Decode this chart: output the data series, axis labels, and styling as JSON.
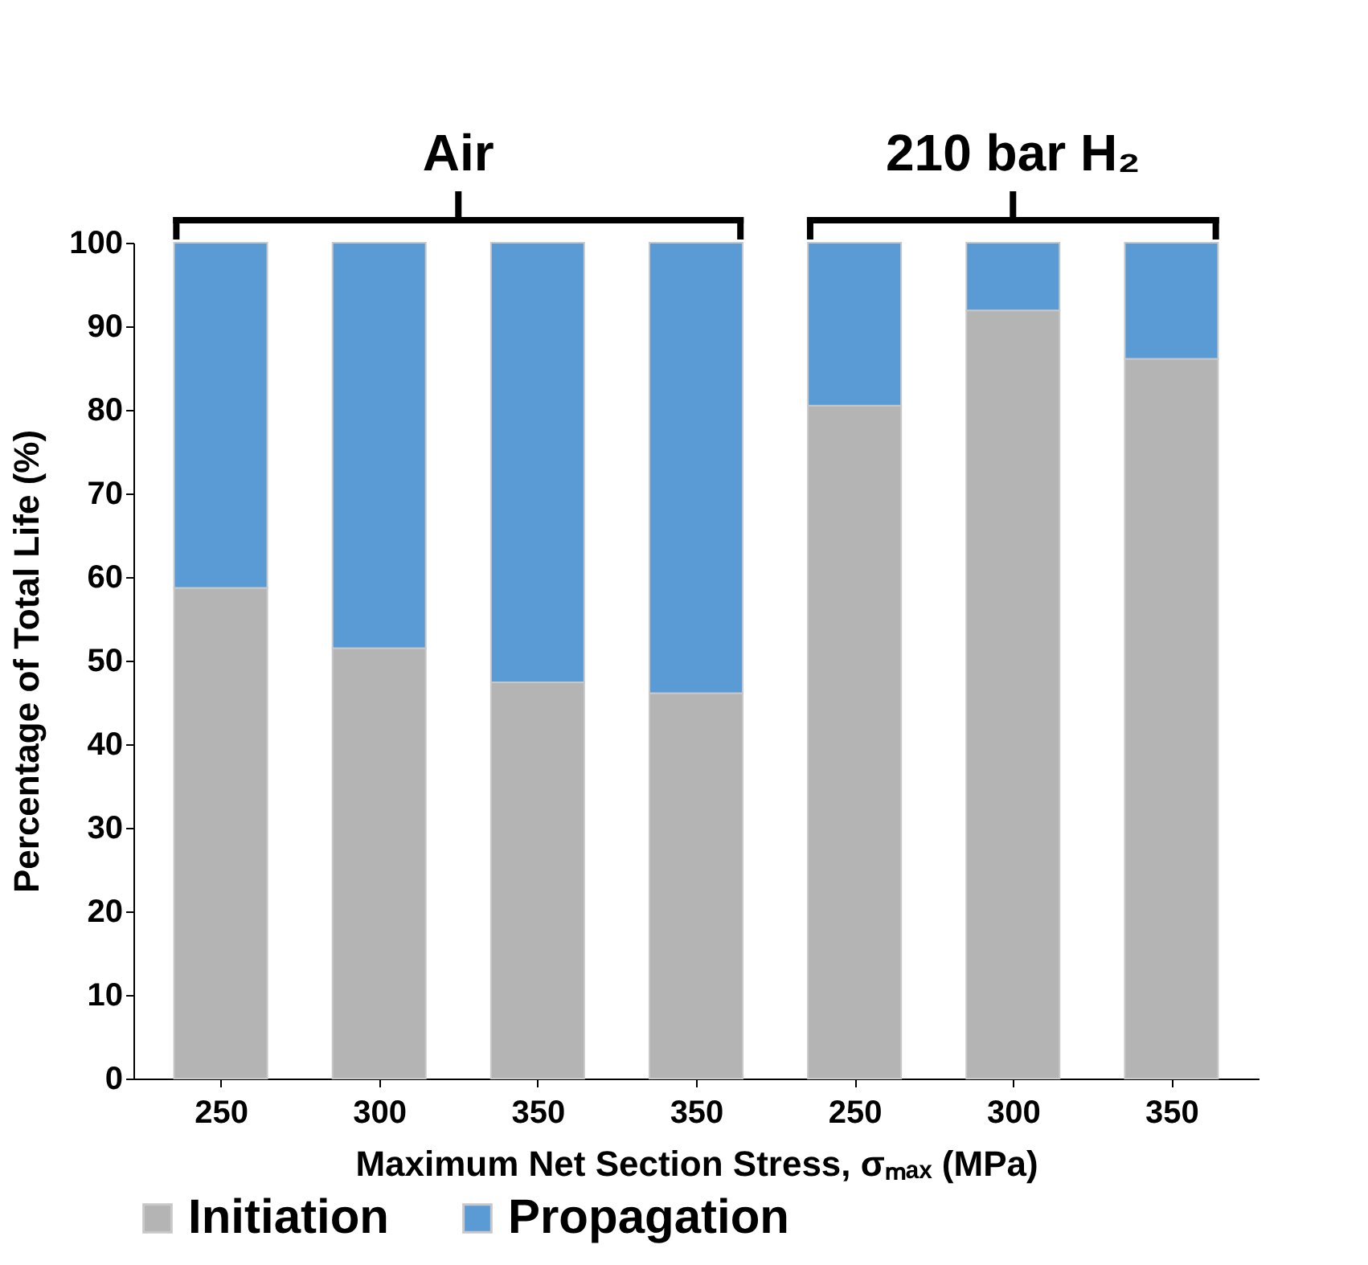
{
  "chart_data": {
    "type": "bar",
    "stacked": true,
    "categories": [
      "250",
      "300",
      "350",
      "350",
      "250",
      "300",
      "350"
    ],
    "xlabel": "Maximum Net Section Stress, σₘₐₓ (MPa)",
    "ylabel": "Percentage of Total Life (%)",
    "series": [
      {
        "name": "Initiation",
        "color": "#b4b4b4",
        "values": [
          58.7,
          51.5,
          47.4,
          46.1,
          80.5,
          91.9,
          86.1
        ]
      },
      {
        "name": "Propagation",
        "color": "#5b9bd5",
        "values": [
          41.3,
          48.5,
          52.6,
          53.9,
          19.5,
          8.1,
          13.9
        ]
      }
    ],
    "annotations": [
      "Air",
      "210 bar H₂"
    ],
    "ylim": [
      0,
      100
    ],
    "yticks": [
      0,
      10,
      20,
      30,
      40,
      50,
      60,
      70,
      80,
      90,
      100
    ],
    "grid": false,
    "legend": "bottom"
  }
}
